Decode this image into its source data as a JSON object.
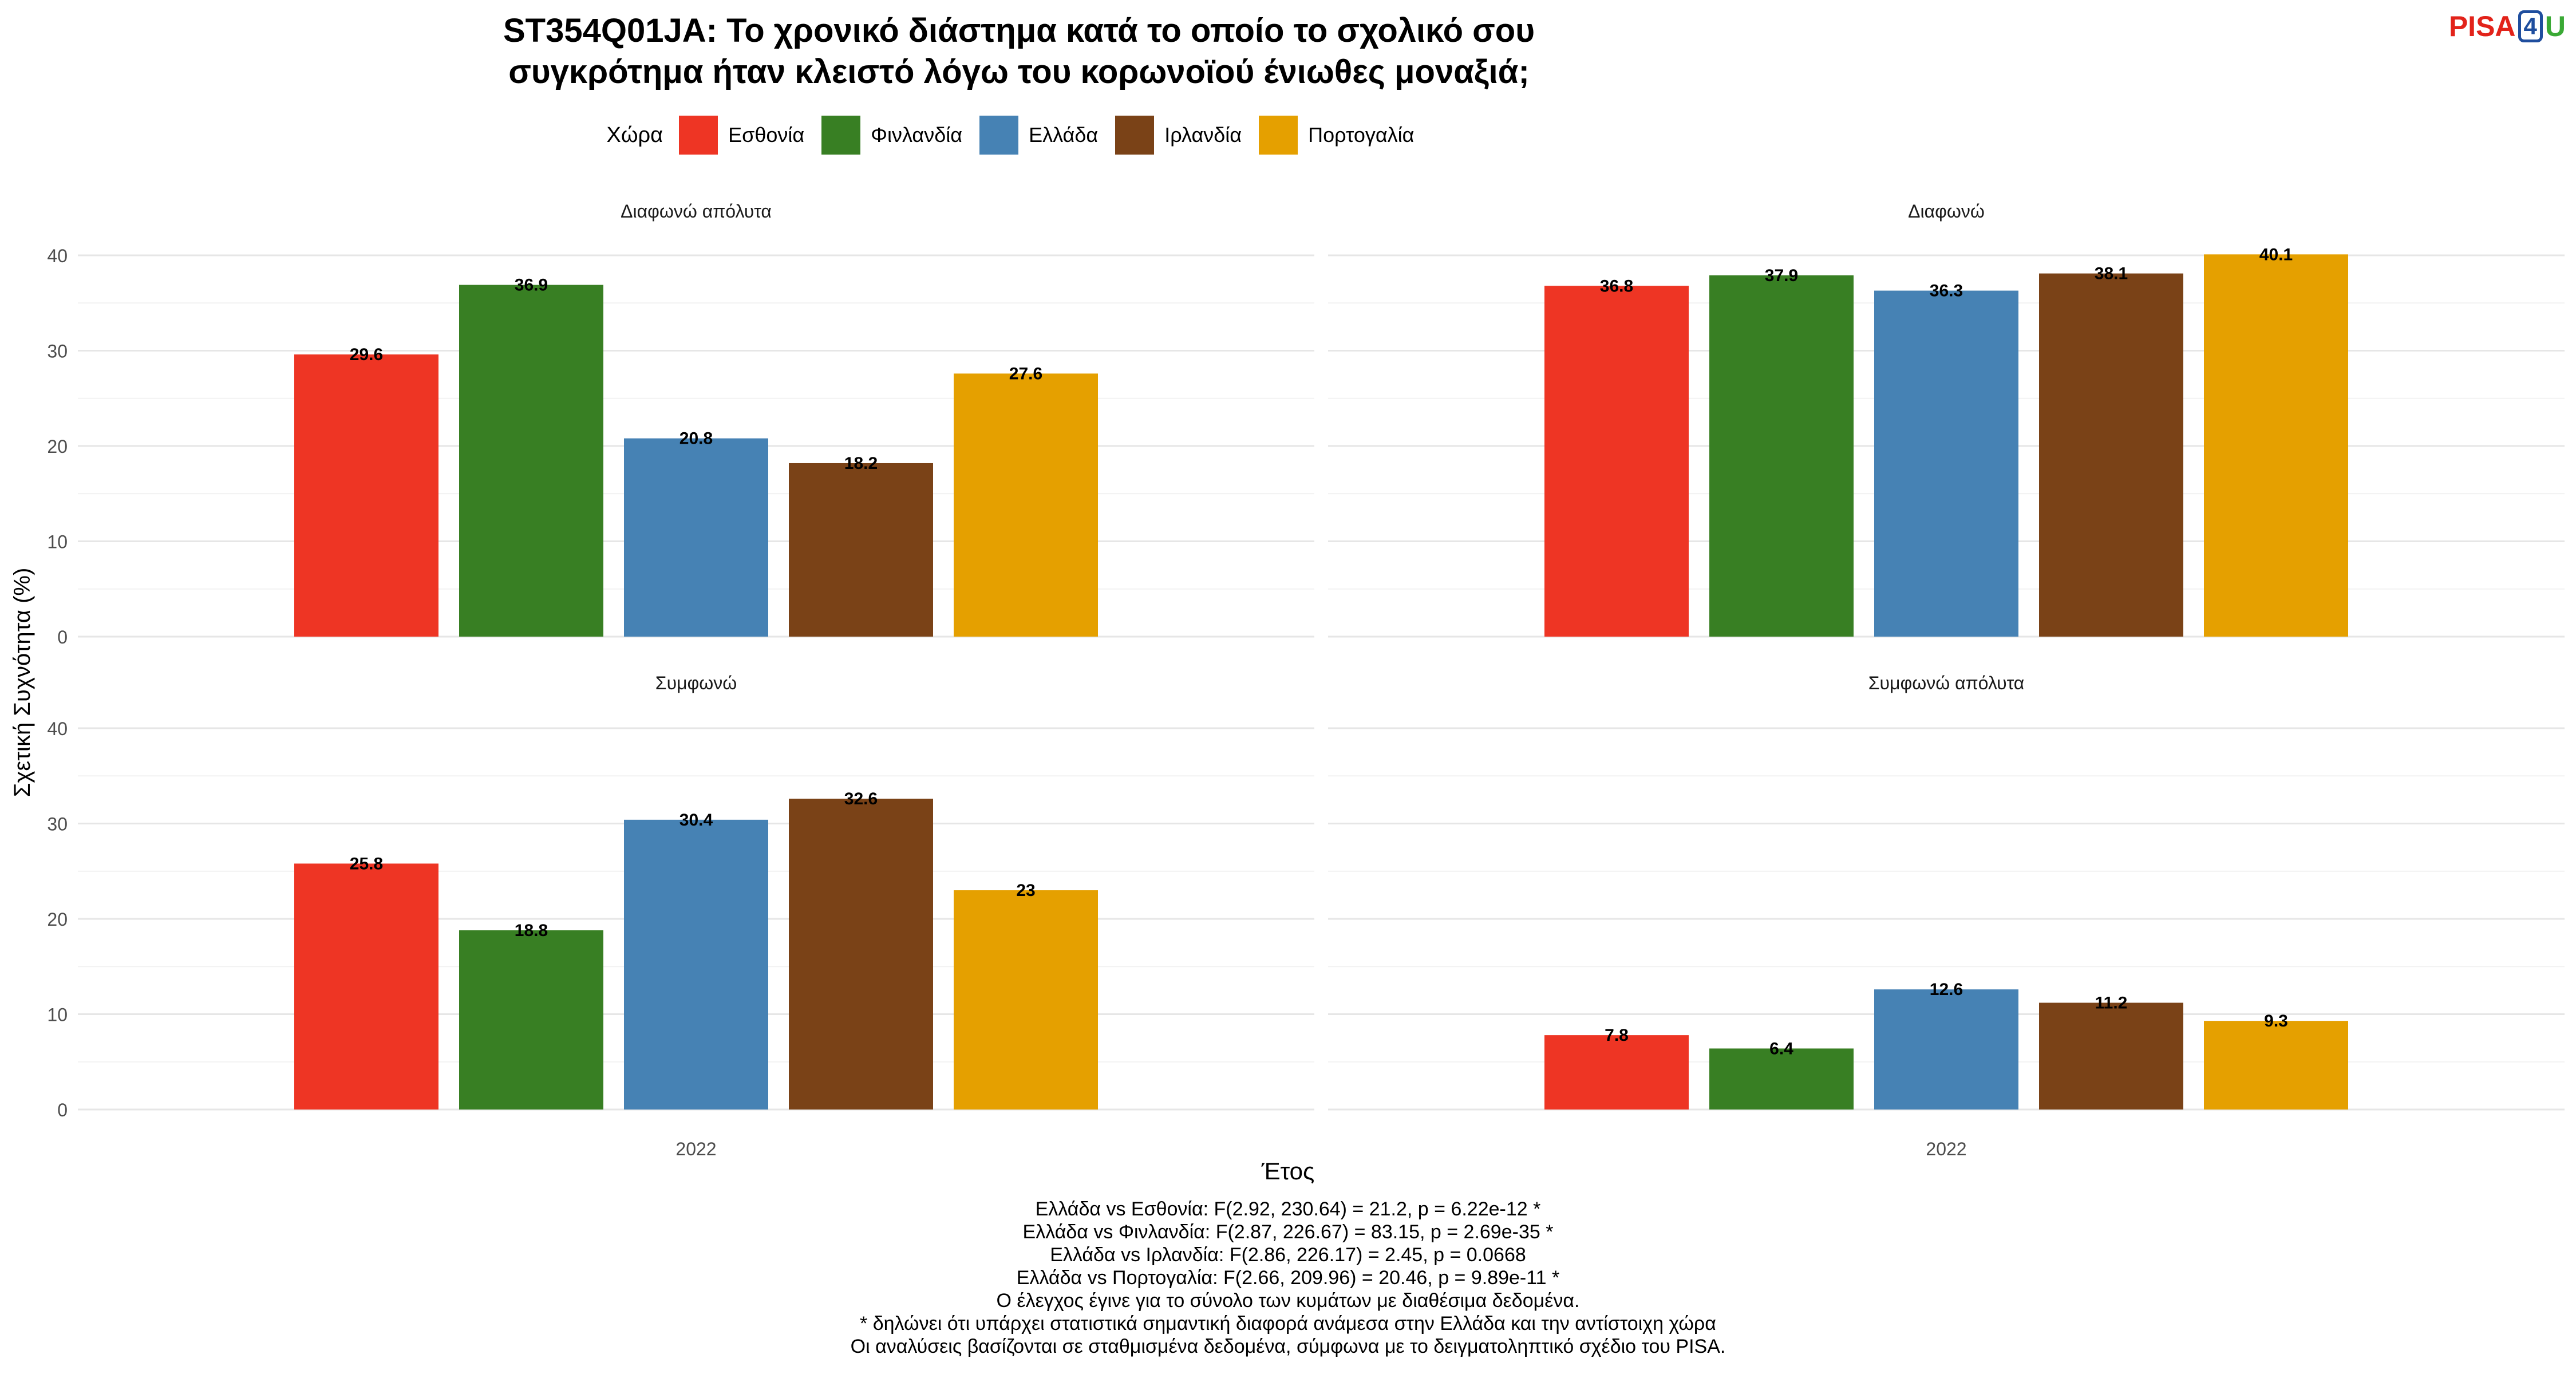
{
  "title": {
    "line1": "ST354Q01JA: Το χρονικό διάστημα κατά το οποίο το σχολικό σου",
    "line2": "συγκρότημα ήταν κλειστό λόγω του κορωνοϊού ένιωθες μοναξιά;"
  },
  "logo": {
    "pisa": "PISA",
    "four": "4",
    "u": "U"
  },
  "legend": {
    "title": "Χώρα",
    "items": [
      {
        "label": "Εσθονία",
        "color": "#ee3524"
      },
      {
        "label": "Φινλανδία",
        "color": "#387f23"
      },
      {
        "label": "Ελλάδα",
        "color": "#4682b4"
      },
      {
        "label": "Ιρλανδία",
        "color": "#7a4217"
      },
      {
        "label": "Πορτογαλία",
        "color": "#e5a000"
      }
    ]
  },
  "chart_data": {
    "type": "bar",
    "ylabel": "Σχετική Συχνότητα (%)",
    "xlabel": "Έτος",
    "ylim": [
      0,
      40
    ],
    "yticks": [
      0,
      10,
      20,
      30,
      40
    ],
    "categories": [
      "Εσθονία",
      "Φινλανδία",
      "Ελλάδα",
      "Ιρλανδία",
      "Πορτογαλία"
    ],
    "facets": [
      {
        "title": "Διαφωνώ απόλυτα",
        "x": "2022",
        "values": [
          29.6,
          36.9,
          20.8,
          18.2,
          27.6
        ],
        "labels": [
          "29.6",
          "36.9",
          "20.8",
          "18.2",
          "27.6"
        ]
      },
      {
        "title": "Διαφωνώ",
        "x": "2022",
        "values": [
          36.8,
          37.9,
          36.3,
          38.1,
          40.1
        ],
        "labels": [
          "36.8",
          "37.9",
          "36.3",
          "38.1",
          "40.1"
        ]
      },
      {
        "title": "Συμφωνώ",
        "x": "2022",
        "values": [
          25.8,
          18.8,
          30.4,
          32.6,
          23
        ],
        "labels": [
          "25.8",
          "18.8",
          "30.4",
          "32.6",
          "23"
        ]
      },
      {
        "title": "Συμφωνώ απόλυτα",
        "x": "2022",
        "values": [
          7.8,
          6.4,
          12.6,
          11.2,
          9.3
        ],
        "labels": [
          "7.8",
          "6.4",
          "12.6",
          "11.2",
          "9.3"
        ]
      }
    ]
  },
  "footnotes": [
    "Ελλάδα vs Εσθονία: F(2.92, 230.64) = 21.2, p = 6.22e-12 *",
    "Ελλάδα vs Φινλανδία: F(2.87, 226.67) = 83.15, p = 2.69e-35 *",
    "Ελλάδα vs Ιρλανδία: F(2.86, 226.17) = 2.45, p = 0.0668",
    "Ελλάδα vs Πορτογαλία: F(2.66, 209.96) = 20.46, p = 9.89e-11 *",
    "Ο έλεγχος έγινε για το σύνολο των κυμάτων με διαθέσιμα δεδομένα.",
    "* δηλώνει ότι υπάρχει στατιστικά σημαντική διαφορά ανάμεσα στην Ελλάδα και την αντίστοιχη χώρα",
    "Οι αναλύσεις βασίζονται σε σταθμισμένα δεδομένα, σύμφωνα με το δειγματοληπτικό σχέδιο του PISA."
  ]
}
